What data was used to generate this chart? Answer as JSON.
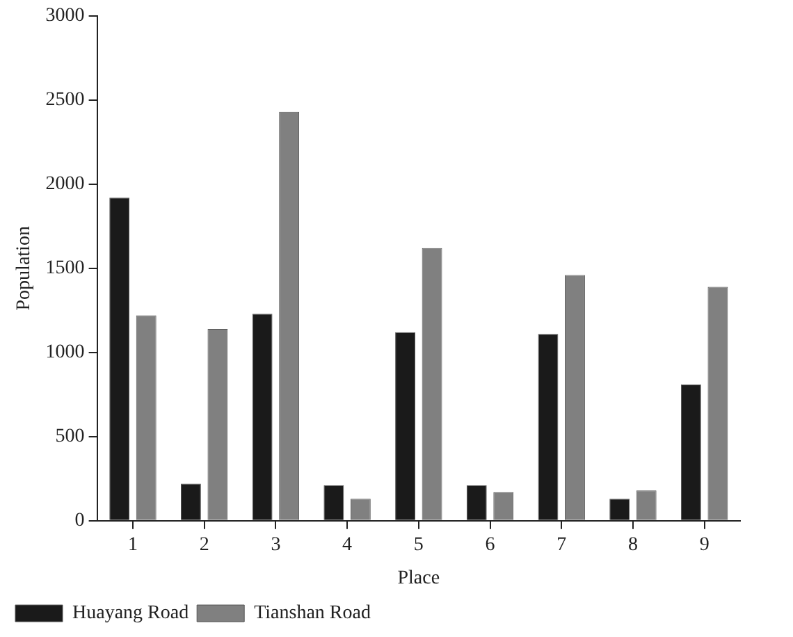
{
  "chart_data": {
    "type": "bar",
    "xlabel": "Place",
    "ylabel": "Population",
    "categories": [
      "1",
      "2",
      "3",
      "4",
      "5",
      "6",
      "7",
      "8",
      "9"
    ],
    "series": [
      {
        "name": "Huayang Road",
        "color": "#1a1a1a",
        "values": [
          1920,
          220,
          1230,
          210,
          1120,
          210,
          1110,
          130,
          810
        ]
      },
      {
        "name": "Tianshan Road",
        "color": "#808080",
        "values": [
          1220,
          1140,
          2430,
          130,
          1620,
          170,
          1460,
          180,
          1390
        ]
      }
    ],
    "ylim": [
      0,
      3000
    ],
    "yticks": [
      0,
      500,
      1000,
      1500,
      2000,
      2500,
      3000
    ],
    "grid": false,
    "legend": "bottom left"
  }
}
